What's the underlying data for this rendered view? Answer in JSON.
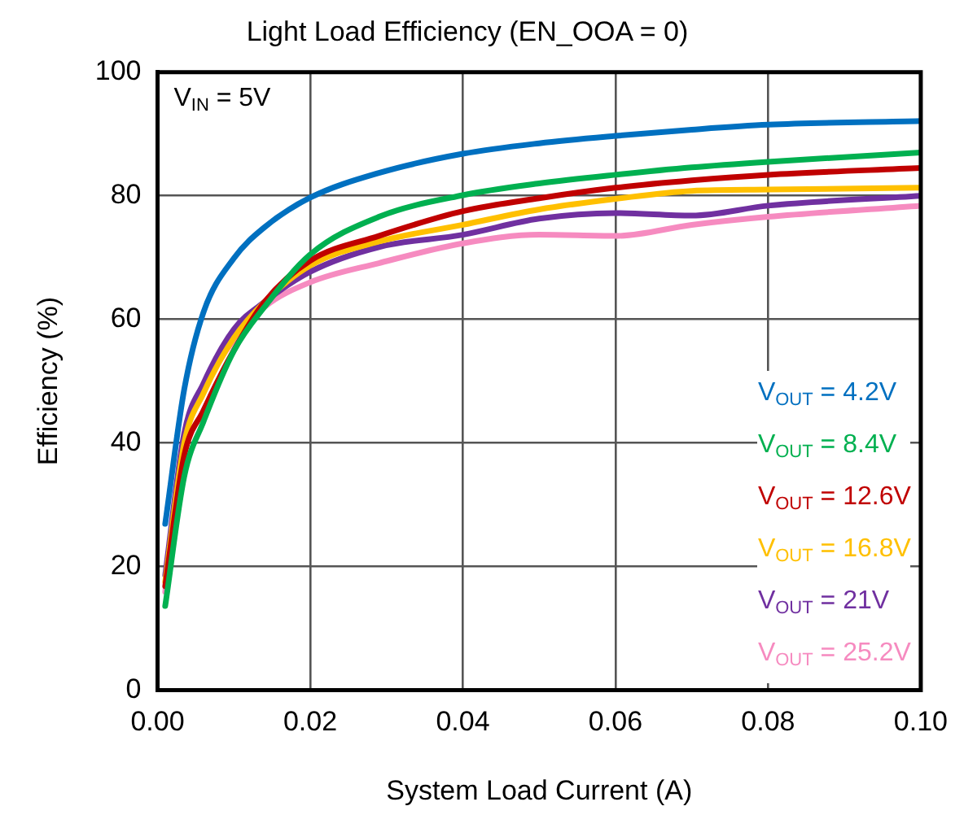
{
  "chart_data": {
    "type": "line",
    "title": "Light Load Efficiency (EN_OOA = 0)",
    "xlabel": "System Load Current (A)",
    "ylabel": "Efficiency (%)",
    "x": [
      0.001,
      0.0035,
      0.006,
      0.01,
      0.014,
      0.02,
      0.029,
      0.04,
      0.05,
      0.06,
      0.07,
      0.08,
      0.1
    ],
    "series": [
      {
        "name": "V$_{OUT}$ = 4.2V",
        "color": "#0070c0",
        "values": [
          26.9,
          48.7,
          61.1,
          69.9,
          74.9,
          79.7,
          83.7,
          86.8,
          88.5,
          89.7,
          90.7,
          91.5,
          92.1
        ]
      },
      {
        "name": "V$_{OUT}$ = 8.4V",
        "color": "#00b050",
        "values": [
          13.6,
          34.6,
          43.4,
          54.9,
          62,
          70.5,
          76.6,
          80.1,
          82,
          83.4,
          84.6,
          85.5,
          87
        ]
      },
      {
        "name": "V$_{OUT}$ = 12.6V",
        "color": "#c00000",
        "values": [
          16.8,
          38,
          45.2,
          55,
          62.8,
          69.5,
          73.5,
          77.5,
          79.6,
          81.3,
          82.5,
          83.4,
          84.5
        ]
      },
      {
        "name": "V$_{OUT}$ = 16.8V",
        "color": "#ffc000",
        "values": [
          17.5,
          40,
          48,
          57,
          62.8,
          68.7,
          72.6,
          75.3,
          77.8,
          79.5,
          80.8,
          81,
          81.3
        ]
      },
      {
        "name": "V$_{OUT}$ = 21V",
        "color": "#7030a0",
        "values": [
          18.6,
          41.6,
          49.6,
          58.4,
          62.8,
          67.7,
          71.7,
          73.7,
          76.3,
          77.2,
          76.8,
          78.4,
          80
        ]
      },
      {
        "name": "V$_{OUT}$ = 25.2V",
        "color": "#f68bc0",
        "values": [
          15.9,
          40.7,
          48.7,
          56.7,
          62,
          66,
          69.1,
          72.3,
          73.7,
          73.5,
          75.3,
          76.6,
          78.4
        ]
      }
    ],
    "xlim": [
      0,
      0.1
    ],
    "xticks": [
      {
        "value": 0,
        "label": "0.00"
      },
      {
        "value": 0.02,
        "label": "0.02"
      },
      {
        "value": 0.04,
        "label": "0.04"
      },
      {
        "value": 0.06,
        "label": "0.06"
      },
      {
        "value": 0.08,
        "label": "0.08"
      },
      {
        "value": 0.1,
        "label": "0.10"
      }
    ],
    "ylim": [
      0,
      100
    ],
    "yticks": [
      0,
      20,
      40,
      60,
      80,
      100
    ],
    "grid": true,
    "legend": "bottom right",
    "marker": "none",
    "line_style": "solid",
    "annotations": [
      "V$_{IN}$ = 5V"
    ]
  }
}
